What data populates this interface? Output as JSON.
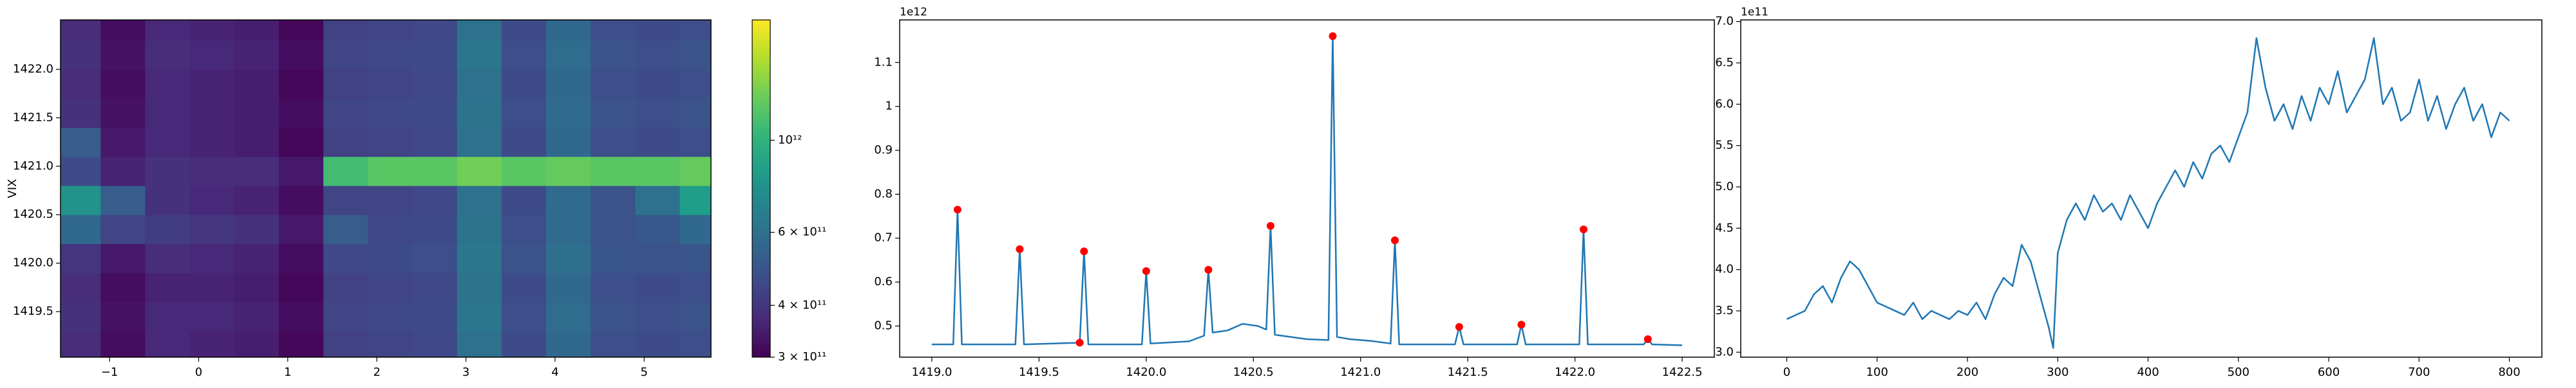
{
  "chart_data": [
    {
      "type": "heatmap",
      "ylabel": "VIX",
      "xlim": [
        -1.55,
        5.75
      ],
      "ylim": [
        1419.03,
        1422.51
      ],
      "xticks": [
        {
          "value": -1,
          "label": "−1"
        },
        0,
        1,
        2,
        3,
        4,
        5
      ],
      "yticks": [
        1419.5,
        {
          "value": 1420,
          "label": "1420.0"
        },
        1420.5,
        {
          "value": 1421,
          "label": "1421.0"
        },
        1421.5,
        {
          "value": 1422,
          "label": "1422.0"
        }
      ],
      "x": [
        -1.35,
        -0.85,
        -0.35,
        0.15,
        0.65,
        1.15,
        1.65,
        2.15,
        2.65,
        3.15,
        3.65,
        4.15,
        4.65,
        5.15,
        5.65
      ],
      "y": [
        1419.15,
        1419.45,
        1419.75,
        1420.05,
        1420.35,
        1420.65,
        1420.95,
        1421.25,
        1421.55,
        1421.85,
        1422.15,
        1422.45
      ],
      "z": [
        [
          380000000000.0,
          320000000000.0,
          370000000000.0,
          360000000000.0,
          350000000000.0,
          310000000000.0,
          430000000000.0,
          440000000000.0,
          450000000000.0,
          600000000000.0,
          460000000000.0,
          560000000000.0,
          470000000000.0,
          460000000000.0,
          470000000000.0
        ],
        [
          390000000000.0,
          330000000000.0,
          370000000000.0,
          370000000000.0,
          360000000000.0,
          320000000000.0,
          440000000000.0,
          450000000000.0,
          460000000000.0,
          620000000000.0,
          470000000000.0,
          580000000000.0,
          480000000000.0,
          470000000000.0,
          480000000000.0
        ],
        [
          380000000000.0,
          320000000000.0,
          360000000000.0,
          360000000000.0,
          350000000000.0,
          310000000000.0,
          430000000000.0,
          440000000000.0,
          450000000000.0,
          610000000000.0,
          460000000000.0,
          560000000000.0,
          470000000000.0,
          460000000000.0,
          470000000000.0
        ],
        [
          400000000000.0,
          340000000000.0,
          380000000000.0,
          370000000000.0,
          360000000000.0,
          320000000000.0,
          450000000000.0,
          460000000000.0,
          470000000000.0,
          630000000000.0,
          480000000000.0,
          590000000000.0,
          490000000000.0,
          480000000000.0,
          490000000000.0
        ],
        [
          560000000000.0,
          440000000000.0,
          420000000000.0,
          400000000000.0,
          390000000000.0,
          340000000000.0,
          520000000000.0,
          450000000000.0,
          460000000000.0,
          610000000000.0,
          470000000000.0,
          570000000000.0,
          480000000000.0,
          500000000000.0,
          560000000000.0
        ],
        [
          780000000000.0,
          520000000000.0,
          390000000000.0,
          370000000000.0,
          360000000000.0,
          320000000000.0,
          440000000000.0,
          440000000000.0,
          450000000000.0,
          600000000000.0,
          460000000000.0,
          570000000000.0,
          480000000000.0,
          600000000000.0,
          850000000000.0
        ],
        [
          460000000000.0,
          360000000000.0,
          390000000000.0,
          380000000000.0,
          380000000000.0,
          340000000000.0,
          1100000000000.0,
          1200000000000.0,
          1200000000000.0,
          1300000000000.0,
          1200000000000.0,
          1250000000000.0,
          1200000000000.0,
          1200000000000.0,
          1250000000000.0
        ],
        [
          520000000000.0,
          340000000000.0,
          370000000000.0,
          360000000000.0,
          350000000000.0,
          310000000000.0,
          430000000000.0,
          440000000000.0,
          450000000000.0,
          600000000000.0,
          460000000000.0,
          560000000000.0,
          470000000000.0,
          460000000000.0,
          470000000000.0
        ],
        [
          390000000000.0,
          330000000000.0,
          370000000000.0,
          360000000000.0,
          350000000000.0,
          320000000000.0,
          440000000000.0,
          450000000000.0,
          460000000000.0,
          610000000000.0,
          470000000000.0,
          570000000000.0,
          480000000000.0,
          470000000000.0,
          480000000000.0
        ],
        [
          380000000000.0,
          320000000000.0,
          370000000000.0,
          360000000000.0,
          350000000000.0,
          310000000000.0,
          430000000000.0,
          440000000000.0,
          450000000000.0,
          600000000000.0,
          460000000000.0,
          560000000000.0,
          470000000000.0,
          460000000000.0,
          470000000000.0
        ],
        [
          390000000000.0,
          330000000000.0,
          380000000000.0,
          370000000000.0,
          360000000000.0,
          320000000000.0,
          440000000000.0,
          450000000000.0,
          460000000000.0,
          620000000000.0,
          470000000000.0,
          580000000000.0,
          480000000000.0,
          470000000000.0,
          480000000000.0
        ],
        [
          380000000000.0,
          320000000000.0,
          370000000000.0,
          360000000000.0,
          350000000000.0,
          310000000000.0,
          430000000000.0,
          440000000000.0,
          450000000000.0,
          600000000000.0,
          460000000000.0,
          560000000000.0,
          470000000000.0,
          460000000000.0,
          470000000000.0
        ]
      ],
      "colorbar": {
        "log": true,
        "colormap": "viridis",
        "lim": [
          300000000000.0,
          1950000000000.0
        ],
        "ticks": [
          {
            "value": 300000000000.0,
            "label": "3 × 10¹¹"
          },
          {
            "value": 400000000000.0,
            "label": "4 × 10¹¹"
          },
          {
            "value": 600000000000.0,
            "label": "6 × 10¹¹"
          },
          {
            "value": 1000000000000.0,
            "label": "10¹²"
          }
        ]
      }
    },
    {
      "type": "line",
      "offset_label": "1e12",
      "xlim": [
        1418.85,
        1422.65
      ],
      "ylim": [
        0.429,
        1.197
      ],
      "xticks": [
        {
          "value": 1419,
          "label": "1419.0"
        },
        1419.5,
        {
          "value": 1420,
          "label": "1420.0"
        },
        1420.5,
        {
          "value": 1421,
          "label": "1421.0"
        },
        1421.5,
        {
          "value": 1422,
          "label": "1422.0"
        },
        1422.5
      ],
      "yticks": [
        0.5,
        0.6,
        0.7,
        0.8,
        0.9,
        1.0,
        1.1
      ],
      "series": [
        {
          "color": "#1f77b4",
          "x": [
            1419.0,
            1419.1,
            1419.12,
            1419.14,
            1419.39,
            1419.41,
            1419.43,
            1419.69,
            1419.71,
            1419.73,
            1419.98,
            1420.0,
            1420.02,
            1420.2,
            1420.27,
            1420.29,
            1420.31,
            1420.38,
            1420.45,
            1420.52,
            1420.56,
            1420.58,
            1420.6,
            1420.75,
            1420.85,
            1420.87,
            1420.89,
            1420.95,
            1421.05,
            1421.14,
            1421.16,
            1421.18,
            1421.44,
            1421.46,
            1421.48,
            1421.73,
            1421.75,
            1421.77,
            1422.02,
            1422.04,
            1422.06,
            1422.32,
            1422.34,
            1422.36,
            1422.5
          ],
          "values": [
            0.458,
            0.458,
            0.765,
            0.458,
            0.458,
            0.675,
            0.458,
            0.462,
            0.67,
            0.458,
            0.458,
            0.625,
            0.46,
            0.465,
            0.478,
            0.628,
            0.485,
            0.49,
            0.505,
            0.5,
            0.492,
            0.728,
            0.48,
            0.47,
            0.468,
            1.16,
            0.475,
            0.47,
            0.466,
            0.46,
            0.695,
            0.458,
            0.458,
            0.498,
            0.458,
            0.458,
            0.503,
            0.458,
            0.458,
            0.72,
            0.458,
            0.458,
            0.47,
            0.458,
            0.456
          ]
        },
        {
          "color": "#ff0000",
          "style": "markers",
          "x": [
            1419.12,
            1419.41,
            1419.69,
            1419.71,
            1420.0,
            1420.29,
            1420.58,
            1420.87,
            1421.16,
            1421.46,
            1421.75,
            1422.04,
            1422.34
          ],
          "values": [
            0.765,
            0.675,
            0.462,
            0.67,
            0.625,
            0.628,
            0.728,
            1.16,
            0.695,
            0.498,
            0.503,
            0.72,
            0.47
          ]
        }
      ]
    },
    {
      "type": "line",
      "offset_label": "1e11",
      "xlim": [
        -51,
        836
      ],
      "ylim": [
        2.94,
        7.02
      ],
      "xticks": [
        0,
        100,
        200,
        300,
        400,
        500,
        600,
        700,
        800
      ],
      "yticks": [
        {
          "value": 3,
          "label": "3.0"
        },
        3.5,
        {
          "value": 4,
          "label": "4.0"
        },
        4.5,
        {
          "value": 5,
          "label": "5.0"
        },
        5.5,
        {
          "value": 6,
          "label": "6.0"
        },
        6.5,
        {
          "value": 7,
          "label": "7.0"
        }
      ],
      "series": [
        {
          "color": "#1f77b4",
          "x": [
            0,
            10,
            20,
            30,
            40,
            50,
            60,
            70,
            80,
            90,
            100,
            110,
            120,
            130,
            140,
            150,
            160,
            170,
            180,
            190,
            200,
            210,
            220,
            230,
            240,
            250,
            260,
            270,
            280,
            290,
            295,
            300,
            310,
            320,
            330,
            340,
            350,
            360,
            370,
            380,
            390,
            400,
            410,
            420,
            430,
            440,
            450,
            460,
            470,
            480,
            490,
            500,
            510,
            520,
            530,
            540,
            550,
            560,
            570,
            580,
            590,
            600,
            610,
            620,
            630,
            640,
            650,
            660,
            670,
            680,
            690,
            700,
            710,
            720,
            730,
            740,
            750,
            760,
            770,
            780,
            790,
            800
          ],
          "values": [
            3.4,
            3.45,
            3.5,
            3.7,
            3.8,
            3.6,
            3.9,
            4.1,
            4.0,
            3.8,
            3.6,
            3.55,
            3.5,
            3.45,
            3.6,
            3.4,
            3.5,
            3.45,
            3.4,
            3.5,
            3.45,
            3.6,
            3.4,
            3.7,
            3.9,
            3.8,
            4.3,
            4.1,
            3.7,
            3.3,
            3.05,
            4.2,
            4.6,
            4.8,
            4.6,
            4.9,
            4.7,
            4.8,
            4.6,
            4.9,
            4.7,
            4.5,
            4.8,
            5.0,
            5.2,
            5.0,
            5.3,
            5.1,
            5.4,
            5.5,
            5.3,
            5.6,
            5.9,
            6.8,
            6.2,
            5.8,
            6.0,
            5.7,
            6.1,
            5.8,
            6.2,
            6.0,
            6.4,
            5.9,
            6.1,
            6.3,
            6.8,
            6.0,
            6.2,
            5.8,
            5.9,
            6.3,
            5.8,
            6.1,
            5.7,
            6.0,
            6.2,
            5.8,
            6.0,
            5.6,
            5.9,
            5.8
          ]
        }
      ]
    }
  ]
}
